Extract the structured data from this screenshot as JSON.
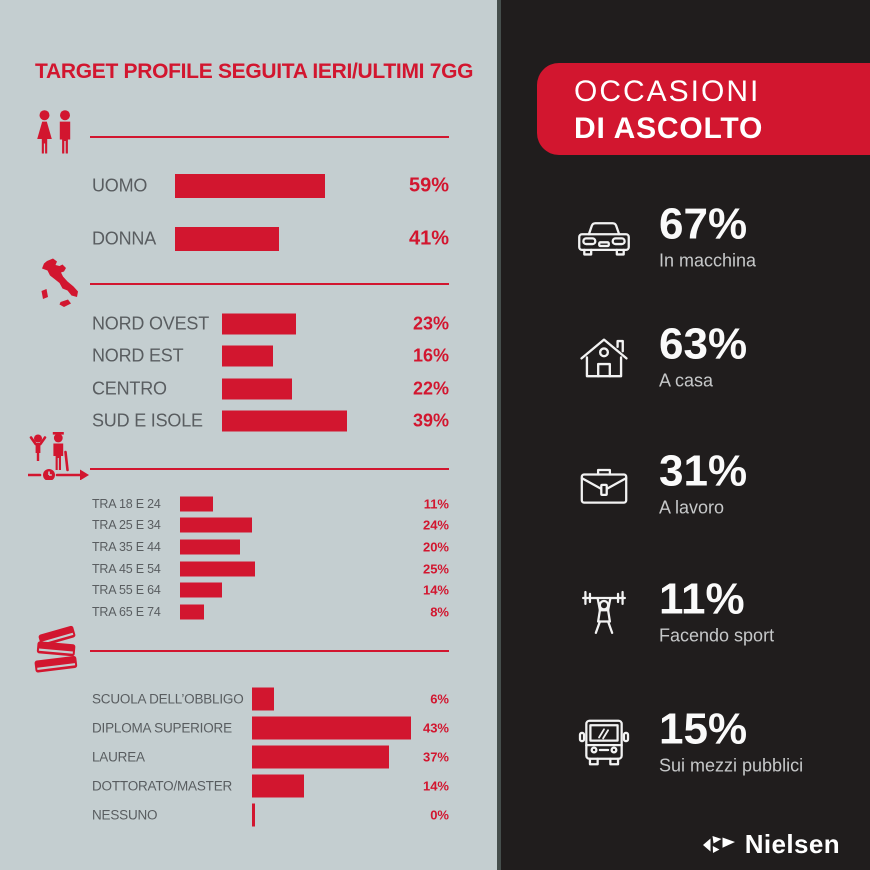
{
  "left": {
    "title": "TARGET PROFILE SEGUITA IERI/ULTIMI 7GG",
    "sections": [
      {
        "icon": "gender-icon",
        "rows": [
          {
            "label": "UOMO",
            "value": 59
          },
          {
            "label": "DONNA",
            "value": 41
          }
        ]
      },
      {
        "icon": "italy-map-icon",
        "rows": [
          {
            "label": "NORD OVEST",
            "value": 23
          },
          {
            "label": "NORD EST",
            "value": 16
          },
          {
            "label": "CENTRO",
            "value": 22
          },
          {
            "label": "SUD E ISOLE",
            "value": 39
          }
        ]
      },
      {
        "icon": "age-icon",
        "rows": [
          {
            "label": "TRA 18 E 24",
            "value": 11
          },
          {
            "label": "TRA 25 E 34",
            "value": 24
          },
          {
            "label": "TRA 35 E 44",
            "value": 20
          },
          {
            "label": "TRA 45 E 54",
            "value": 25
          },
          {
            "label": "TRA 55 E 64",
            "value": 14
          },
          {
            "label": "TRA 65 E 74",
            "value": 8
          }
        ]
      },
      {
        "icon": "books-icon",
        "rows": [
          {
            "label": "SCUOLA DELL’OBBLIGO",
            "value": 6
          },
          {
            "label": "DIPLOMA SUPERIORE",
            "value": 43
          },
          {
            "label": "LAUREA",
            "value": 37
          },
          {
            "label": "DOTTORATO/MASTER",
            "value": 14
          },
          {
            "label": "NESSUNO",
            "value": 0
          }
        ]
      }
    ]
  },
  "right": {
    "header": {
      "line1": "OCCASIONI",
      "line2": "DI ASCOLTO"
    },
    "items": [
      {
        "icon": "car-icon",
        "pct": "67%",
        "label": "In macchina"
      },
      {
        "icon": "house-icon",
        "pct": "63%",
        "label": "A casa"
      },
      {
        "icon": "briefcase-icon",
        "pct": "31%",
        "label": "A lavoro"
      },
      {
        "icon": "weightlifter-icon",
        "pct": "11%",
        "label": "Facendo sport"
      },
      {
        "icon": "bus-icon",
        "pct": "15%",
        "label": "Sui mezzi pubblici"
      }
    ],
    "brand": "Nielsen"
  },
  "colors": {
    "red": "#d2162f",
    "left_bg": "#c4ced0",
    "dark_bg": "#201d1d",
    "label_gray": "#595d60",
    "white": "#ffffff",
    "light_label": "#c6c8c9"
  },
  "chart_data": [
    {
      "type": "bar",
      "title": "TARGET PROFILE SEGUITA IERI/ULTIMI 7GG",
      "orientation": "horizontal",
      "unit": "%",
      "groups": [
        {
          "name": "gender",
          "categories": [
            "UOMO",
            "DONNA"
          ],
          "values": [
            59,
            41
          ]
        },
        {
          "name": "region",
          "categories": [
            "NORD OVEST",
            "NORD EST",
            "CENTRO",
            "SUD E ISOLE"
          ],
          "values": [
            23,
            16,
            22,
            39
          ]
        },
        {
          "name": "age",
          "categories": [
            "TRA 18 E 24",
            "TRA 25 E 34",
            "TRA 35 E 44",
            "TRA 45 E 54",
            "TRA 55 E 64",
            "TRA 65 E 74"
          ],
          "values": [
            11,
            24,
            20,
            25,
            14,
            8
          ]
        },
        {
          "name": "education",
          "categories": [
            "SCUOLA DELL’OBBLIGO",
            "DIPLOMA SUPERIORE",
            "LAUREA",
            "DOTTORATO/MASTER",
            "NESSUNO"
          ],
          "values": [
            6,
            43,
            37,
            14,
            0
          ]
        }
      ],
      "legend": false,
      "grid": false
    },
    {
      "type": "bar",
      "title": "OCCASIONI DI ASCOLTO",
      "unit": "%",
      "categories": [
        "In macchina",
        "A casa",
        "A lavoro",
        "Facendo sport",
        "Sui mezzi pubblici"
      ],
      "values": [
        67,
        63,
        31,
        11,
        15
      ],
      "legend": false,
      "grid": false
    }
  ]
}
